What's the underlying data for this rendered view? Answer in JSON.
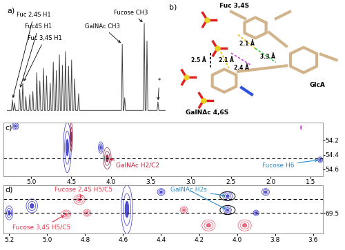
{
  "chart_data": [
    {
      "type": "line",
      "title": "a)",
      "x": [
        5.8,
        5.65,
        5.62,
        5.59,
        5.58,
        5.55,
        5.52,
        5.41,
        5.38,
        5.35,
        5.31,
        5.28,
        5.25,
        5.21,
        5.18,
        5.15,
        5.08,
        5.05,
        5.02,
        4.98,
        4.95,
        4.92,
        4.85,
        4.82,
        4.79,
        4.75,
        4.72,
        4.69,
        4.63,
        4.6,
        4.57,
        4.53,
        4.5,
        4.47,
        4.41,
        4.38,
        4.35,
        4.31,
        4.28,
        4.25,
        4.21,
        4.18,
        4.15,
        4.11,
        4.08,
        4.05,
        4.01,
        3.98,
        3.95,
        3.91,
        3.88,
        3.85,
        3.81,
        3.78,
        3.75,
        3.71,
        3.68,
        3.65,
        3.61,
        3.58,
        3.55,
        3.48,
        3.45,
        3.42,
        2.05,
        2.02,
        1.99,
        1.97,
        1.94,
        1.91,
        1.33,
        1.3,
        1.27,
        1.24,
        1.21,
        1.18,
        0.88,
        0.85,
        0.82,
        0.6
      ],
      "values": [
        2,
        2,
        12,
        2,
        2,
        9,
        2,
        2,
        22,
        2,
        2,
        28,
        2,
        2,
        15,
        2,
        2,
        17,
        2,
        2,
        20,
        2,
        2,
        38,
        2,
        2,
        30,
        2,
        2,
        42,
        2,
        2,
        35,
        2,
        2,
        28,
        2,
        2,
        48,
        2,
        2,
        40,
        2,
        2,
        55,
        2,
        2,
        45,
        2,
        2,
        58,
        2,
        2,
        44,
        2,
        2,
        50,
        2,
        2,
        32,
        2,
        2,
        18,
        2,
        2,
        65,
        2,
        2,
        14,
        2,
        2,
        85,
        2,
        2,
        68,
        2,
        2,
        10,
        2,
        2
      ],
      "color": "#444444",
      "xlim": [
        5.8,
        0.6
      ],
      "ylim": [
        0,
        100
      ],
      "tick_labels": false,
      "annotations": [
        {
          "text": "Fuc 2,4S H1",
          "x": 5.62,
          "y": 12,
          "color": "#000000"
        },
        {
          "text": "Fuc4S H1",
          "x": 5.38,
          "y": 22,
          "color": "#000000"
        },
        {
          "text": "Fuc 3,4S H1",
          "x": 5.28,
          "y": 28,
          "color": "#000000"
        },
        {
          "text": "GalNAc CH3",
          "x": 2.02,
          "y": 65,
          "color": "#000000"
        },
        {
          "text": "Fucose CH3",
          "x": 1.3,
          "y": 85,
          "color": "#000000"
        },
        {
          "text": "*",
          "x": 0.85,
          "y": 10,
          "color": "#000000"
        }
      ]
    },
    {
      "type": "contour",
      "title": "c)",
      "xlim": [
        5.35,
        1.35
      ],
      "xticks": [
        5.0,
        4.5,
        4.0,
        3.5,
        3.0,
        2.5,
        2.0,
        1.5
      ],
      "ylim": [
        54.7,
        53.95
      ],
      "yticks": [
        54.2,
        54.4,
        54.6
      ],
      "reference_lines": [
        54.45
      ],
      "peaks": [
        {
          "x": 4.55,
          "y": 54.3,
          "dx": 0.05,
          "dy": 0.35,
          "color": "#3030c8"
        },
        {
          "x": 4.5,
          "y": 54.15,
          "dx": 0.015,
          "dy": 0.2,
          "color": "#8b1a3a"
        },
        {
          "x": 4.05,
          "y": 54.45,
          "dx": 0.05,
          "dy": 0.15,
          "color": "#8b1a3a"
        },
        {
          "x": 4.13,
          "y": 54.3,
          "dx": 0.03,
          "dy": 0.08,
          "color": "#3030c8"
        },
        {
          "x": 5.2,
          "y": 54.0,
          "dx": 0.04,
          "dy": 0.05,
          "color": "#3030c8"
        },
        {
          "x": 1.38,
          "y": 54.47,
          "dx": 0.03,
          "dy": 0.04,
          "color": "#3030c8"
        },
        {
          "x": 1.62,
          "y": 54.02,
          "dx": 0.005,
          "dy": 0.03,
          "color": "#d040d0"
        }
      ],
      "annotations": [
        {
          "text": "GalNAc H2/C2",
          "x": 4.05,
          "y": 54.45,
          "color": "#c0203a"
        },
        {
          "text": "Fucose H6",
          "x": 1.38,
          "y": 54.47,
          "color": "#2a8ac8"
        }
      ]
    },
    {
      "type": "contour",
      "title": "d)",
      "xlim": [
        5.23,
        3.55
      ],
      "xticks": [
        5.2,
        5.0,
        4.8,
        4.6,
        4.4,
        4.2,
        4.0,
        3.8,
        3.6
      ],
      "ylim": [
        69.8,
        69.1
      ],
      "yticks": [
        69.5
      ],
      "reference_lines": [
        69.3,
        69.5
      ],
      "peaks": [
        {
          "x": 4.83,
          "y": 69.31,
          "dx": 0.03,
          "dy": 0.07,
          "color": "#e8506a"
        },
        {
          "x": 4.9,
          "y": 69.52,
          "dx": 0.025,
          "dy": 0.06,
          "color": "#e8506a"
        },
        {
          "x": 4.79,
          "y": 69.5,
          "dx": 0.02,
          "dy": 0.05,
          "color": "#e8506a"
        },
        {
          "x": 4.15,
          "y": 69.68,
          "dx": 0.035,
          "dy": 0.08,
          "color": "#e8506a"
        },
        {
          "x": 3.96,
          "y": 69.68,
          "dx": 0.035,
          "dy": 0.08,
          "color": "#e8506a"
        },
        {
          "x": 4.28,
          "y": 69.46,
          "dx": 0.02,
          "dy": 0.05,
          "color": "#e8506a"
        },
        {
          "x": 4.05,
          "y": 69.26,
          "dx": 0.025,
          "dy": 0.06,
          "color": "#3030c8"
        },
        {
          "x": 4.05,
          "y": 69.46,
          "dx": 0.02,
          "dy": 0.05,
          "color": "#3030c8"
        },
        {
          "x": 4.58,
          "y": 69.45,
          "dx": 0.03,
          "dy": 0.35,
          "color": "#3030c8"
        },
        {
          "x": 5.08,
          "y": 69.4,
          "dx": 0.03,
          "dy": 0.1,
          "color": "#3030c8"
        },
        {
          "x": 5.2,
          "y": 69.5,
          "dx": 0.02,
          "dy": 0.1,
          "color": "#3030c8"
        },
        {
          "x": 3.85,
          "y": 69.2,
          "dx": 0.02,
          "dy": 0.05,
          "color": "#3030c8"
        },
        {
          "x": 3.9,
          "y": 69.5,
          "dx": 0.015,
          "dy": 0.04,
          "color": "#3030c8"
        },
        {
          "x": 4.4,
          "y": 69.2,
          "dx": 0.02,
          "dy": 0.05,
          "color": "#3030c8"
        }
      ],
      "annotations": [
        {
          "text": "Fucose 2,4S H5/C5",
          "x": 4.83,
          "y": 69.31,
          "color": "#e8304a"
        },
        {
          "text": "Fucose 3,4S H5/C5",
          "x": 4.9,
          "y": 69.52,
          "color": "#e8304a"
        },
        {
          "text": "GalNAc H2s",
          "targets": [
            [
              4.05,
              69.26
            ],
            [
              4.05,
              69.46
            ]
          ],
          "color": "#2a8ac8"
        }
      ]
    }
  ],
  "diagram": {
    "title": "b)",
    "labels": [
      "Fuc 3,4S",
      "GlcA",
      "GalNAc 4,6S"
    ],
    "distances": [
      "2.5 Å",
      "2.1 Å",
      "2.1 Å",
      "2.4 Å",
      "3.3 Å"
    ]
  }
}
